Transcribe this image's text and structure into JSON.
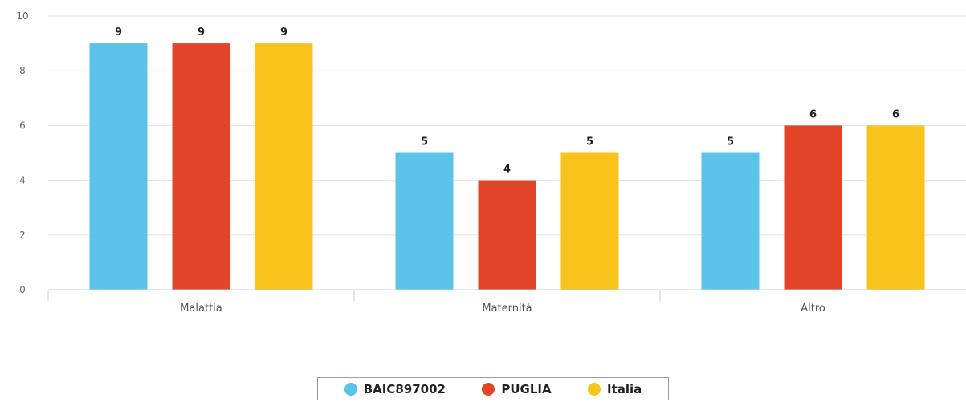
{
  "chart_data": {
    "type": "bar",
    "categories": [
      "Malattia",
      "Maternità",
      "Altro"
    ],
    "series": [
      {
        "name": "BAIC897002",
        "values": [
          9,
          5,
          5
        ],
        "color": "#5bc3ea"
      },
      {
        "name": "PUGLIA",
        "values": [
          9,
          4,
          6
        ],
        "color": "#e24427"
      },
      {
        "name": "Italia",
        "values": [
          9,
          5,
          6
        ],
        "color": "#f8c41c"
      }
    ],
    "ylim": [
      0,
      10
    ],
    "yticks": [
      "0",
      "2",
      "4",
      "6",
      "8",
      "10"
    ],
    "grid": true,
    "legend_position": "bottom-center",
    "data_labels": true
  }
}
